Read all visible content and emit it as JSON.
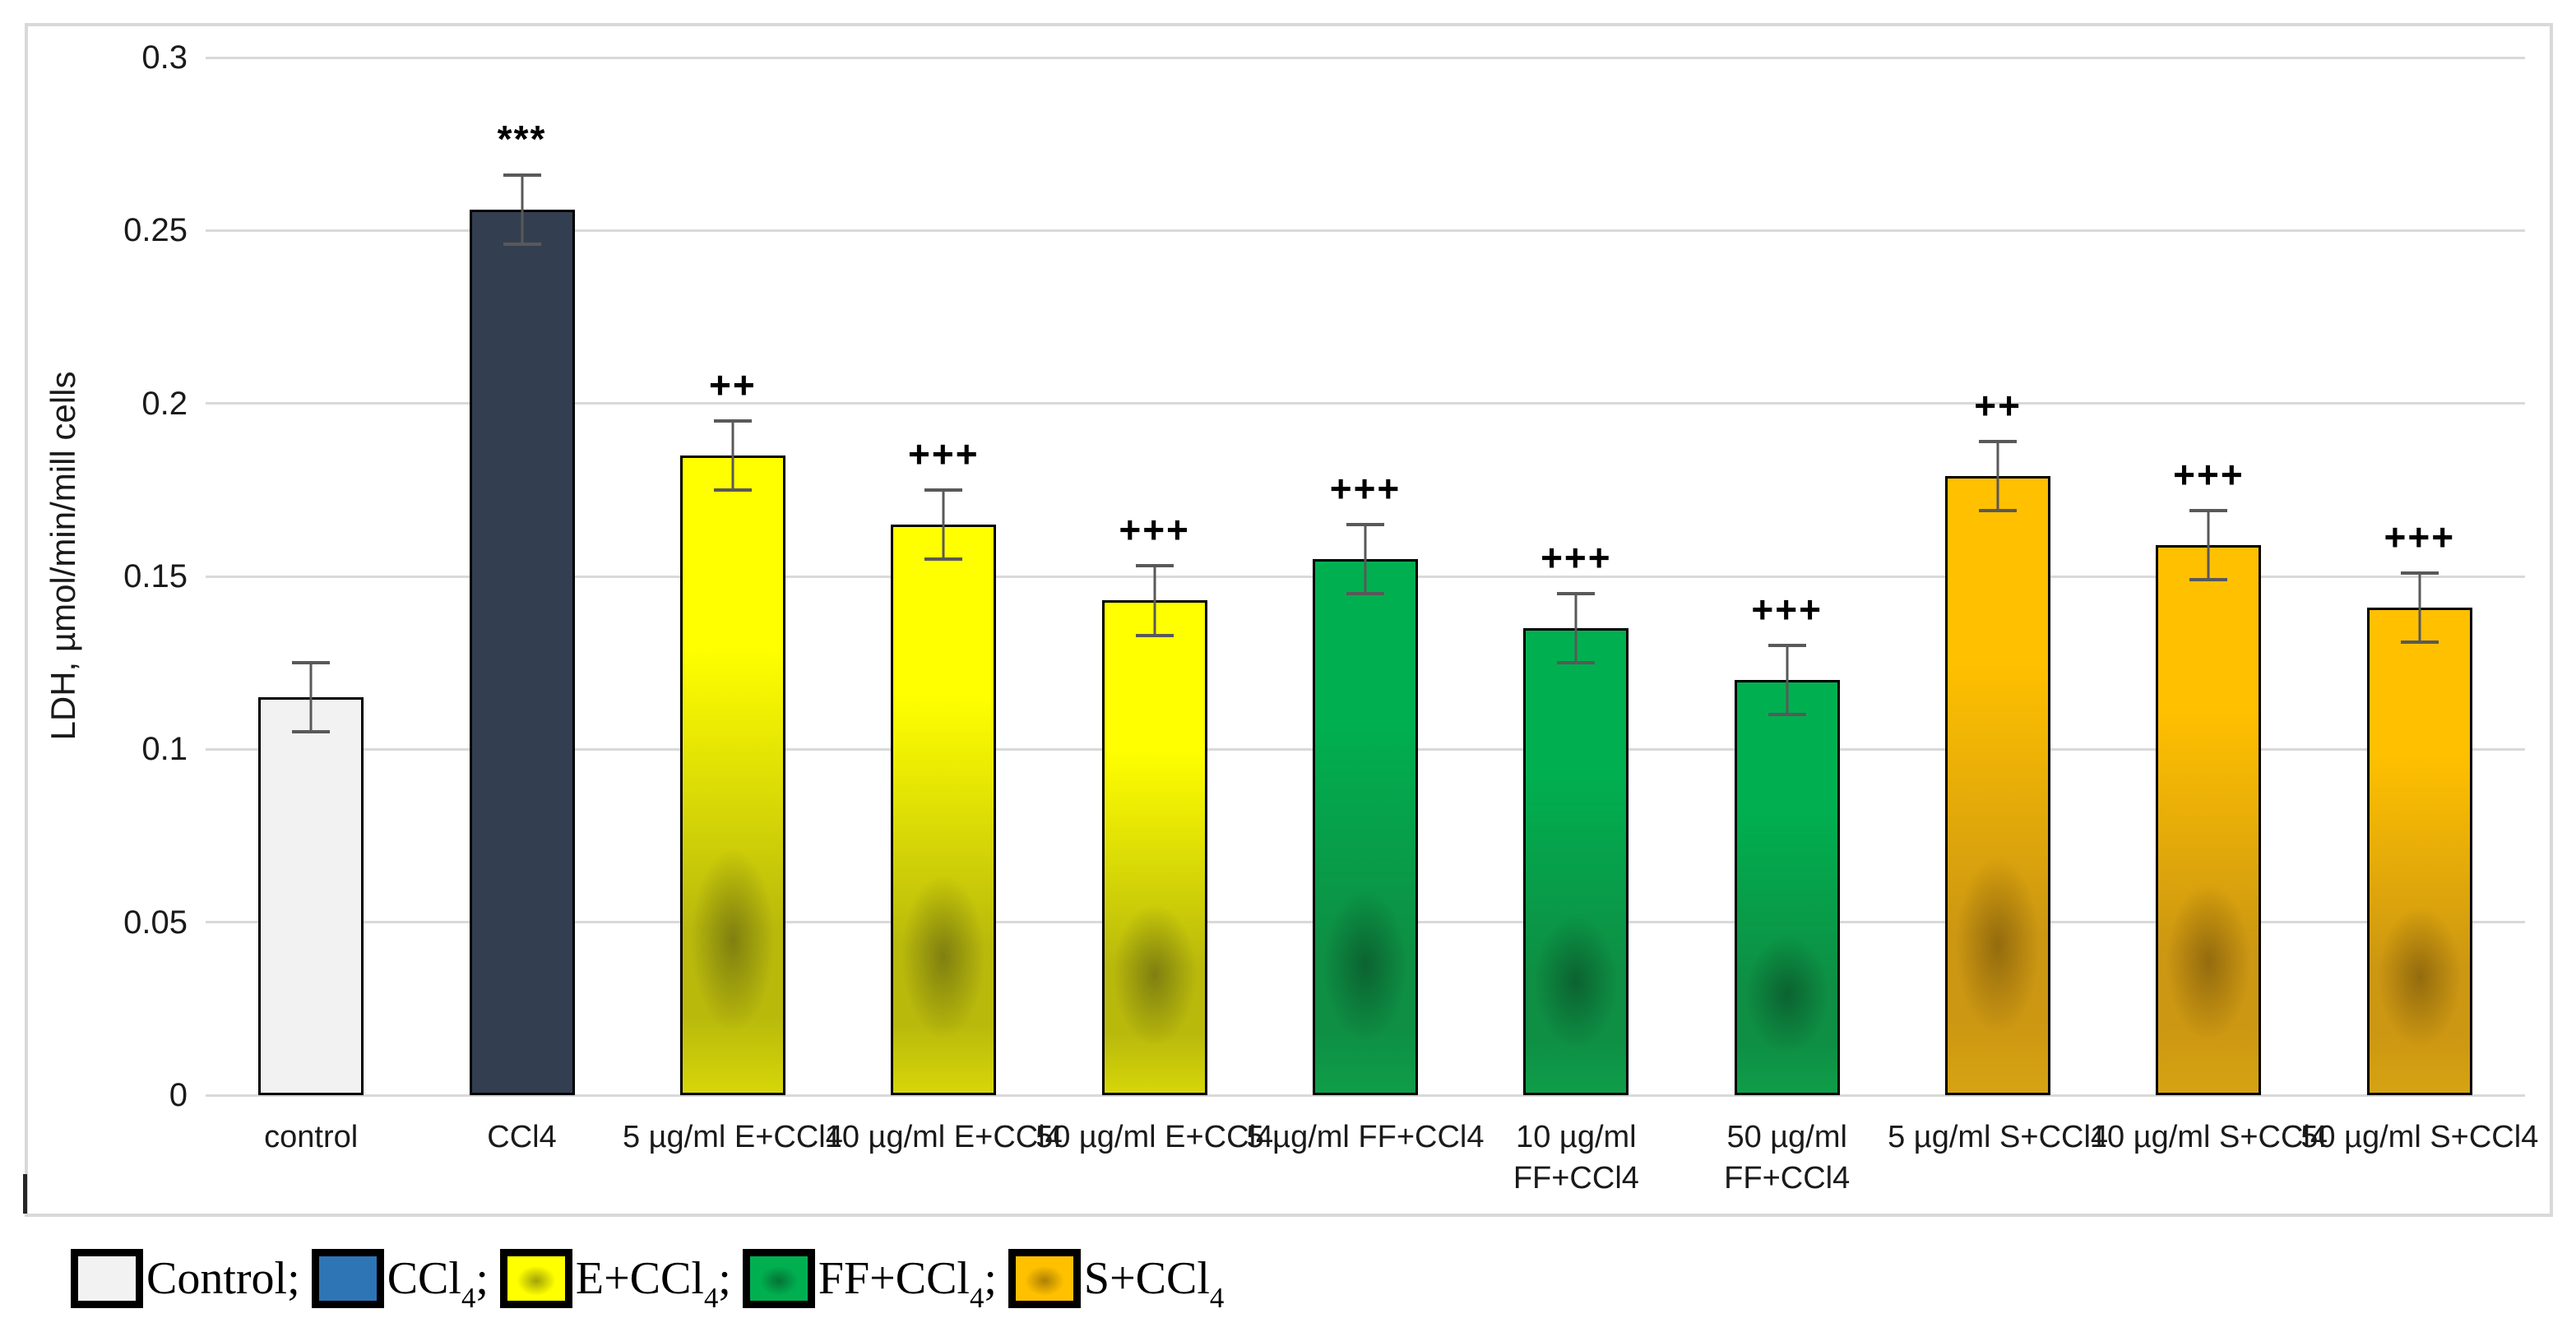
{
  "chart_data": {
    "type": "bar",
    "title": "",
    "xlabel": "",
    "ylabel": "LDH, µmol/min/mill cells",
    "ylim": [
      0,
      0.3
    ],
    "ytick_step": 0.05,
    "yticks": [
      0,
      0.05,
      0.1,
      0.15,
      0.2,
      0.25,
      0.3
    ],
    "ytick_labels": [
      "0",
      "0.05",
      "0.1",
      "0.15",
      "0.2",
      "0.25",
      "0.3"
    ],
    "grid": true,
    "legend_position": "bottom-left",
    "categories": [
      "control",
      "CCl4",
      "5 µg/ml E+CCl4",
      "10 µg/ml E+CCl4",
      "50 µg/ml E+CCl4",
      "5 µg/ml FF+CCl4",
      "10 µg/ml\nFF+CCl4",
      "50 µg/ml\nFF+CCl4",
      "5 µg/ml S+CCl4",
      "10 µg/ml S+CCl4",
      "50 µg/ml S+CCl4"
    ],
    "values": [
      0.115,
      0.256,
      0.185,
      0.165,
      0.143,
      0.155,
      0.135,
      0.12,
      0.179,
      0.159,
      0.141
    ],
    "errors": [
      0.01,
      0.01,
      0.01,
      0.01,
      0.01,
      0.01,
      0.01,
      0.01,
      0.01,
      0.01,
      0.01
    ],
    "annotations": [
      "",
      "***",
      "++",
      "+++",
      "+++",
      "+++",
      "+++",
      "+++",
      "++",
      "+++",
      "+++"
    ],
    "bar_groups": [
      "control",
      "ccl4",
      "E",
      "E",
      "E",
      "FF",
      "FF",
      "FF",
      "S",
      "S",
      "S"
    ],
    "legend": [
      {
        "pre": "Control",
        "sub": "",
        "suffix": ";",
        "swatch": "control"
      },
      {
        "pre": "CCl",
        "sub": "4",
        "suffix": ";",
        "swatch": "ccl4"
      },
      {
        "pre": "E+CCl",
        "sub": "4",
        "suffix": ";",
        "swatch": "E"
      },
      {
        "pre": "FF+CCl",
        "sub": "4",
        "suffix": ";",
        "swatch": "FF"
      },
      {
        "pre": "S+CCl",
        "sub": "4",
        "suffix": "",
        "swatch": "S"
      }
    ]
  },
  "palette": {
    "control_fill": "#f2f2f2",
    "ccl4_bar_fill": "#333f50",
    "ccl4_legend_fill": "#2e75b6",
    "e_yellow_top": "#ffff00",
    "e_yellow_shade": "#b9b90c",
    "e_yellow_bottom": "#d6d609",
    "e_spot": "rgba(70,70,20,0.50)",
    "ff_green_top": "#00b050",
    "ff_green_shade": "#0e8f44",
    "ff_green_bottom": "#0f9d49",
    "ff_spot": "rgba(8,55,28,0.50)",
    "s_orange_top": "#ffc000",
    "s_orange_shade": "#cc9712",
    "s_orange_bottom": "#d6a313",
    "s_spot": "rgba(92,64,10,0.50)",
    "bar_border": "#000000",
    "grid_color": "#d9d9d9",
    "error_bar_color": "#595959",
    "text_color": "#1a1a1a",
    "card_border": "#d9d9d9"
  }
}
